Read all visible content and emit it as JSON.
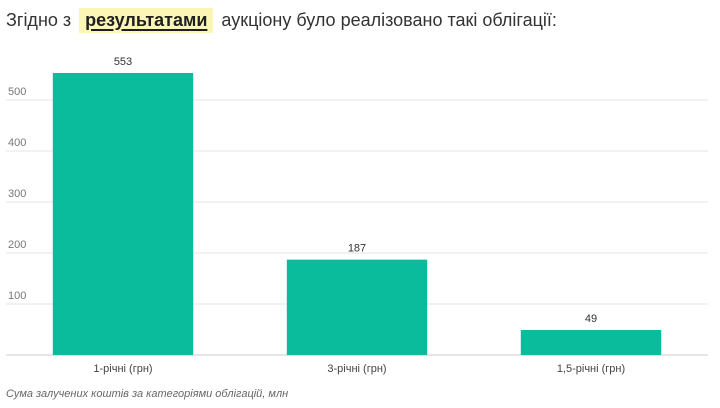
{
  "header": {
    "before": "Згідно з",
    "highlight": "результатами",
    "after": "аукціону було реалізовано такі облігації:"
  },
  "caption": "Сума залучених коштів за категоріями облігацій, млн",
  "colors": {
    "bar": "#0bbc9c",
    "highlight": "#fbf6b6"
  },
  "chart_data": {
    "type": "bar",
    "categories": [
      "1-річні (грн)",
      "3-річні (грн)",
      "1,5-річні (грн)"
    ],
    "values": [
      553,
      187,
      49
    ],
    "yticks": [
      100,
      200,
      300,
      400,
      500
    ],
    "ylim": [
      0,
      600
    ],
    "grid": true,
    "title": "",
    "xlabel": "",
    "ylabel": ""
  }
}
